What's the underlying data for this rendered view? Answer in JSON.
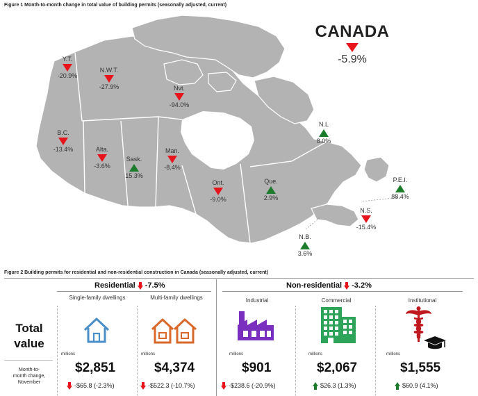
{
  "figure1": {
    "title": "Figure 1  Month-to-month change in total value of building permits (seasonally adjusted, current)",
    "canada": {
      "name": "CANADA",
      "change": "-5.9%",
      "direction": "down"
    },
    "provinces": [
      {
        "abbr": "Y.T.",
        "change": "-20.9%",
        "direction": "down"
      },
      {
        "abbr": "N.W.T.",
        "change": "-27.9%",
        "direction": "down"
      },
      {
        "abbr": "Nvt.",
        "change": "-94.0%",
        "direction": "down"
      },
      {
        "abbr": "B.C.",
        "change": "-13.4%",
        "direction": "down"
      },
      {
        "abbr": "Alta.",
        "change": "-3.6%",
        "direction": "down"
      },
      {
        "abbr": "Sask.",
        "change": "15.3%",
        "direction": "up"
      },
      {
        "abbr": "Man.",
        "change": "-8.4%",
        "direction": "down"
      },
      {
        "abbr": "Ont.",
        "change": "-9.0%",
        "direction": "down"
      },
      {
        "abbr": "Que.",
        "change": "2.9%",
        "direction": "up"
      },
      {
        "abbr": "N.L",
        "change": "8.0%",
        "direction": "up"
      },
      {
        "abbr": "P.E.I.",
        "change": "88.4%",
        "direction": "up"
      },
      {
        "abbr": "N.S.",
        "change": "-15.4%",
        "direction": "down"
      },
      {
        "abbr": "N.B.",
        "change": "3.6%",
        "direction": "up"
      }
    ],
    "colors": {
      "down": "#e8141b",
      "up": "#1d7b2c",
      "land": "#b3b3b3",
      "water": "#ffffff"
    }
  },
  "figure2": {
    "title": "Figure 2  Building permits for residential and non-residential construction in Canada (seasonally adjusted, current)",
    "residential": {
      "label": "Residential",
      "change": "-7.5%"
    },
    "nonresidential": {
      "label": "Non-residential",
      "change": "-3.2%"
    },
    "row_label_total": "Total value",
    "row_label_total_1": "Total",
    "row_label_total_2": "value",
    "row_label_change_1": "Month-to-",
    "row_label_change_2": "month change,",
    "row_label_change_3": "November",
    "units": "millions",
    "categories": [
      {
        "name": "Single-family dwellings",
        "icon": "house-icon",
        "value": "$2,851",
        "change": "-$65.8 (-2.3%)",
        "direction": "down"
      },
      {
        "name": "Multi-family dwellings",
        "icon": "houses-icon",
        "value": "$4,374",
        "change": "-$522.3 (-10.7%)",
        "direction": "down"
      },
      {
        "name": "Industrial",
        "icon": "factory-icon",
        "value": "$901",
        "change": "-$238.6 (-20.9%)",
        "direction": "down"
      },
      {
        "name": "Commercial",
        "icon": "office-building-icon",
        "value": "$2,067",
        "change": "$26.3 (1.3%)",
        "direction": "up"
      },
      {
        "name": "Institutional",
        "icon": "caduceus-graduation-icon",
        "value": "$1,555",
        "change": "$60.9 (4.1%)",
        "direction": "up"
      }
    ],
    "colors": {
      "house": "#4a8fc7",
      "houses": "#d9692a",
      "factory": "#7b2fbe",
      "commercial": "#2ea35a",
      "institutional": "#c0181f"
    }
  }
}
